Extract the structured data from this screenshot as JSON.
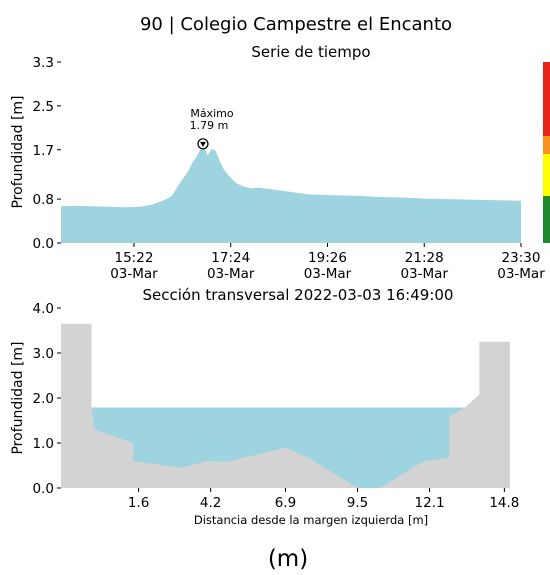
{
  "title": "90 | Colegio Campestre el Encanto",
  "caption": "(m)",
  "alert_colors": [
    "#e8231a",
    "#f7941d",
    "#ffff00",
    "#1f8a2e"
  ],
  "chart_data": [
    {
      "type": "area",
      "title": "Serie de tiempo",
      "ylabel": "Profundidad [m]",
      "xlabel": "",
      "ylim": [
        0,
        3.3
      ],
      "yticks": [
        "0.0",
        "0.8",
        "1.7",
        "2.5",
        "3.3"
      ],
      "xticks": [
        {
          "time": "15:22",
          "date": "03-Mar"
        },
        {
          "time": "17:24",
          "date": "03-Mar"
        },
        {
          "time": "19:26",
          "date": "03-Mar"
        },
        {
          "time": "21:28",
          "date": "03-Mar"
        },
        {
          "time": "23:30",
          "date": "03-Mar"
        }
      ],
      "fill_color": "#9ed3e0",
      "x_minutes_range": [
        "13:50",
        "23:30"
      ],
      "series": [
        {
          "x": [
            "13:50",
            "14:10",
            "14:30",
            "14:50",
            "15:10",
            "15:30",
            "15:45",
            "16:00",
            "16:10",
            "16:20",
            "16:30",
            "16:35",
            "16:40",
            "16:45",
            "16:49",
            "16:55",
            "17:00",
            "17:05",
            "17:10",
            "17:15",
            "17:20",
            "17:30",
            "17:40",
            "17:50",
            "18:00",
            "18:15",
            "18:30",
            "19:00",
            "19:30",
            "20:00",
            "20:30",
            "21:00",
            "21:30",
            "22:00",
            "22:30",
            "23:00",
            "23:30"
          ],
          "values": [
            0.67,
            0.68,
            0.67,
            0.66,
            0.65,
            0.66,
            0.7,
            0.78,
            0.86,
            1.1,
            1.3,
            1.45,
            1.55,
            1.68,
            1.79,
            1.6,
            1.72,
            1.68,
            1.5,
            1.35,
            1.25,
            1.1,
            1.03,
            1.0,
            1.01,
            0.98,
            0.95,
            0.89,
            0.87,
            0.86,
            0.84,
            0.83,
            0.81,
            0.8,
            0.79,
            0.78,
            0.77
          ]
        }
      ],
      "annotation": {
        "label": "Máximo",
        "value": "1.79 m",
        "x": "16:49",
        "y": 1.79
      }
    },
    {
      "type": "area",
      "title": "Sección transversal 2022-03-03 16:49:00",
      "ylabel": "Profundidad [m]",
      "xlabel": "Distancia desde la margen izquierda [m]",
      "xlim": [
        -1.2,
        15.4
      ],
      "ylim": [
        0,
        4.0
      ],
      "yticks": [
        "0.0",
        "1.0",
        "2.0",
        "3.0",
        "4.0"
      ],
      "xticks": [
        "1.6",
        "4.2",
        "6.9",
        "9.5",
        "12.1",
        "14.8"
      ],
      "water_level": 1.79,
      "water_color": "#9ed3e0",
      "bed_color": "#d3d3d3",
      "profile": {
        "x": [
          -1.2,
          -0.1,
          -0.1,
          0.0,
          1.4,
          1.4,
          3.1,
          4.1,
          4.8,
          6.9,
          7.8,
          9.5,
          10.3,
          11.9,
          12.8,
          12.8,
          13.4,
          13.9,
          13.9,
          15.0
        ],
        "y": [
          3.65,
          3.65,
          1.8,
          1.3,
          1.0,
          0.6,
          0.45,
          0.6,
          0.58,
          0.9,
          0.65,
          0.0,
          0.0,
          0.6,
          0.67,
          1.58,
          1.8,
          2.08,
          3.25,
          3.25
        ]
      }
    }
  ]
}
